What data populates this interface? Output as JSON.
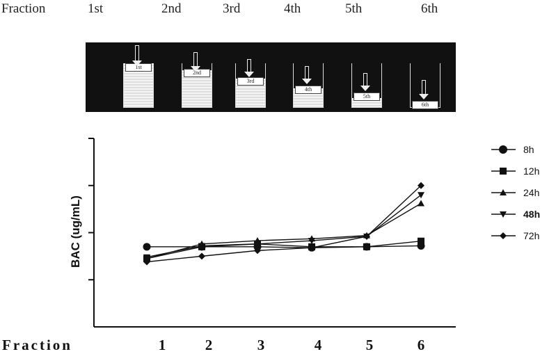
{
  "header": {
    "fraction_label": "Fraction",
    "fractions": [
      "1st",
      "2nd",
      "3rd",
      "4th",
      "5th",
      "6th"
    ]
  },
  "illustration": {
    "beaker_labels": [
      "1st",
      "2nd",
      "3rd",
      "4th",
      "5th",
      "6th"
    ],
    "liquid_levels": [
      0.92,
      0.8,
      0.62,
      0.42,
      0.22,
      0.0
    ]
  },
  "chart_data": {
    "type": "line",
    "title": "",
    "xlabel": "Fraction",
    "ylabel": "BAC (ug/mL)",
    "categories": [
      "1",
      "2",
      "3",
      "4",
      "5",
      "6"
    ],
    "y_tick_labels": [],
    "ylim": [
      0,
      4
    ],
    "grid": false,
    "legend_position": "right",
    "series": [
      {
        "name": "8h",
        "marker": "circle",
        "values": [
          1.7,
          1.7,
          1.7,
          1.68,
          1.7,
          1.72
        ]
      },
      {
        "name": "12h",
        "marker": "square",
        "values": [
          1.45,
          1.7,
          1.76,
          1.7,
          1.7,
          1.82
        ]
      },
      {
        "name": "24h",
        "marker": "triangle-up",
        "values": [
          1.45,
          1.76,
          1.83,
          1.87,
          1.94,
          2.62
        ]
      },
      {
        "name": "48h",
        "marker": "triangle-down",
        "values": [
          1.48,
          1.72,
          1.76,
          1.83,
          1.92,
          2.8
        ]
      },
      {
        "name": "72h",
        "marker": "diamond",
        "values": [
          1.38,
          1.5,
          1.62,
          1.68,
          1.92,
          3.0
        ]
      }
    ]
  }
}
